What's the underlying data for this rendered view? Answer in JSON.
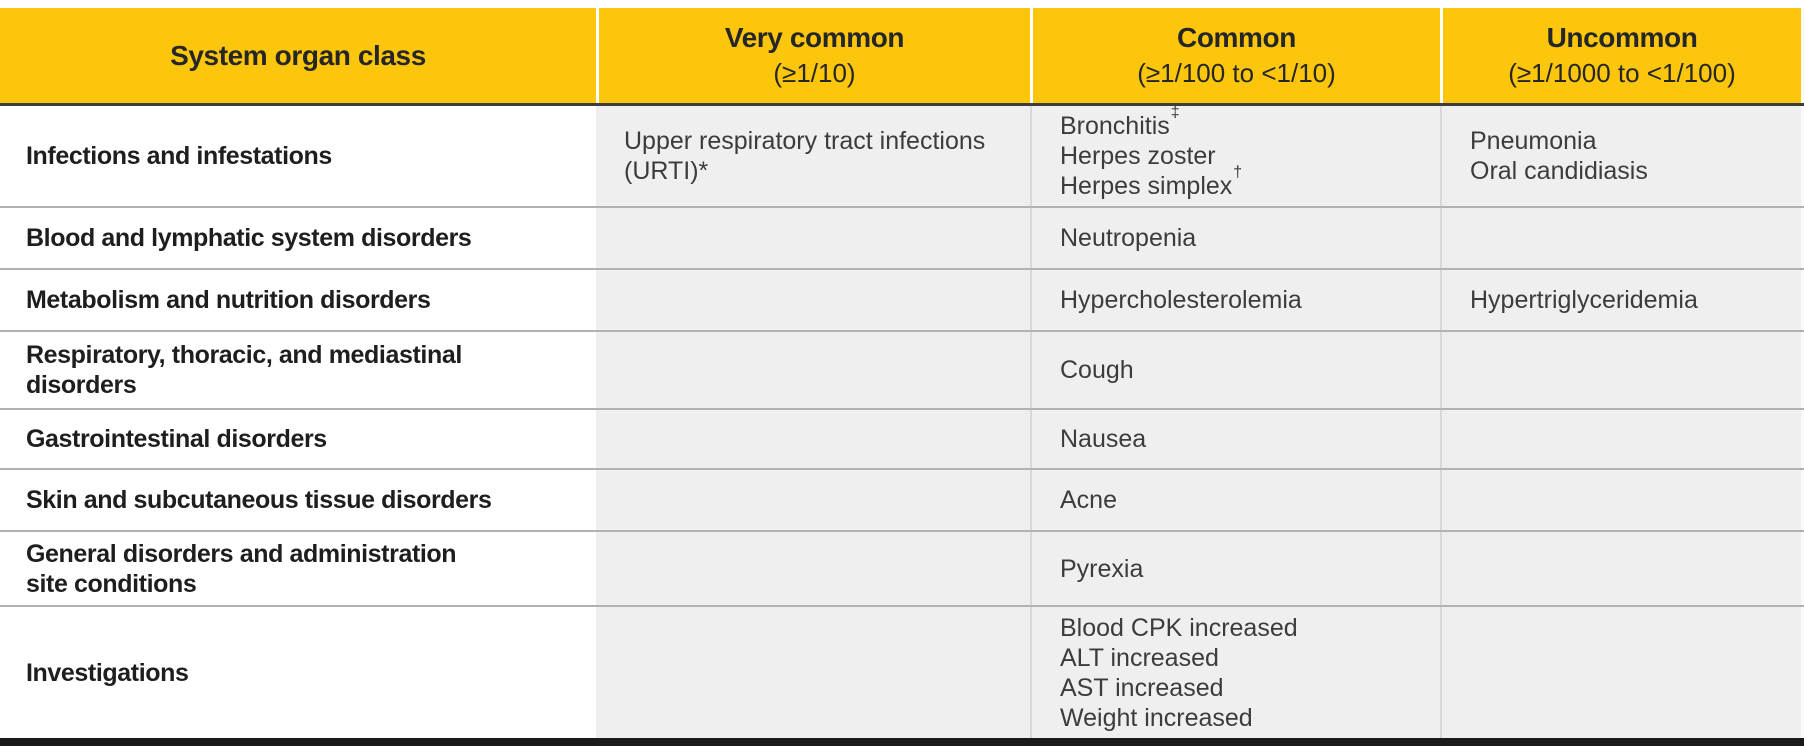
{
  "colors": {
    "header_bg": "#fcc60d",
    "header_text": "#262626",
    "header_divider": "#3e3c38",
    "body_cell_bg": "#f0efef",
    "cell_divider": "#d8d8d8",
    "row_divider": "#b2b2b2",
    "organ_text": "#1e1e1e",
    "event_text": "#3c3c3c",
    "bottom_bar": "#1a1a1a"
  },
  "table": {
    "columns": [
      {
        "title": "System organ class",
        "subtitle": ""
      },
      {
        "title": "Very common",
        "subtitle": "(≥1/10)"
      },
      {
        "title": "Common",
        "subtitle": "(≥1/100 to <1/10)"
      },
      {
        "title": "Uncommon",
        "subtitle": "(≥1/1000 to <1/100)"
      }
    ],
    "rows": [
      {
        "organ_class": "Infections and infestations",
        "very_common": [
          {
            "text": "Upper respiratory tract infections\n(URTI)*",
            "sup": ""
          }
        ],
        "common": [
          {
            "text": "Bronchitis",
            "sup": "‡"
          },
          {
            "text": "Herpes zoster",
            "sup": ""
          },
          {
            "text": "Herpes simplex",
            "sup": "†"
          }
        ],
        "uncommon": [
          {
            "text": "Pneumonia",
            "sup": ""
          },
          {
            "text": "Oral candidiasis",
            "sup": ""
          }
        ]
      },
      {
        "organ_class": "Blood and lymphatic system disorders",
        "very_common": [],
        "common": [
          {
            "text": "Neutropenia",
            "sup": ""
          }
        ],
        "uncommon": []
      },
      {
        "organ_class": "Metabolism and nutrition disorders",
        "very_common": [],
        "common": [
          {
            "text": "Hypercholesterolemia",
            "sup": ""
          }
        ],
        "uncommon": [
          {
            "text": "Hypertriglyceridemia",
            "sup": ""
          }
        ]
      },
      {
        "organ_class": "Respiratory, thoracic, and mediastinal\ndisorders",
        "very_common": [],
        "common": [
          {
            "text": "Cough",
            "sup": ""
          }
        ],
        "uncommon": []
      },
      {
        "organ_class": "Gastrointestinal disorders",
        "very_common": [],
        "common": [
          {
            "text": "Nausea",
            "sup": ""
          }
        ],
        "uncommon": []
      },
      {
        "organ_class": "Skin and subcutaneous tissue disorders",
        "very_common": [],
        "common": [
          {
            "text": "Acne",
            "sup": ""
          }
        ],
        "uncommon": []
      },
      {
        "organ_class": "General disorders and administration\nsite conditions",
        "very_common": [],
        "common": [
          {
            "text": "Pyrexia",
            "sup": ""
          }
        ],
        "uncommon": []
      },
      {
        "organ_class": "Investigations",
        "very_common": [],
        "common": [
          {
            "text": "Blood CPK increased",
            "sup": ""
          },
          {
            "text": "ALT increased",
            "sup": ""
          },
          {
            "text": "AST increased",
            "sup": ""
          },
          {
            "text": "Weight increased",
            "sup": ""
          }
        ],
        "uncommon": []
      }
    ]
  }
}
